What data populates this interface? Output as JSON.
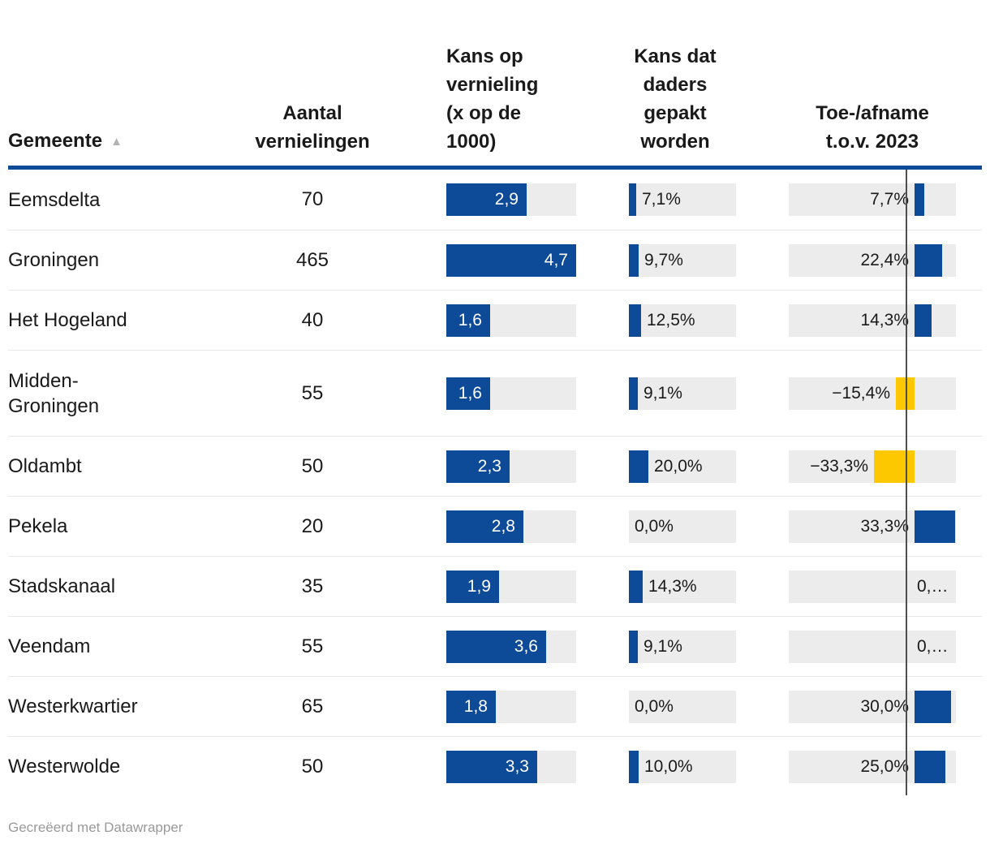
{
  "header": {
    "col_gemeente": "Gemeente",
    "sort_icon": "▲",
    "col_aantal": "Aantal\nvernielingen",
    "col_kans_vernieling": "Kans op\nvernieling\n(x op de\n1000)",
    "col_kans_gepakt": "Kans dat\ndaders\ngepakt\nworden",
    "col_toe_afname": "Toe-/afname\nt.o.v. 2023"
  },
  "colors": {
    "bar_positive": "#0d4a98",
    "bar_negative": "#fec800",
    "track": "#ececec",
    "header_rule": "#0d4a98",
    "zero_line": "#4e4e4e"
  },
  "footer": {
    "credit": "Gecreëerd met Datawrapper"
  },
  "chart_data": {
    "type": "table",
    "columns": [
      "Gemeente",
      "Aantal vernielingen",
      "Kans op vernieling (x op de 1000)",
      "Kans dat daders gepakt worden",
      "Toe-/afname t.o.v. 2023"
    ],
    "scales": {
      "kans_vernieling_max": 4.7,
      "kans_gepakt_max": 110,
      "toe_afname_max": 33.3
    },
    "rows": [
      {
        "gemeente": "Eemsdelta",
        "aantal": "70",
        "kans_vernieling": 2.9,
        "kans_vernieling_label": "2,9",
        "kans_gepakt": 7.1,
        "kans_gepakt_label": "7,1%",
        "toe_afname": 7.7,
        "toe_afname_label": "7,7%"
      },
      {
        "gemeente": "Groningen",
        "aantal": "465",
        "kans_vernieling": 4.7,
        "kans_vernieling_label": "4,7",
        "kans_gepakt": 9.7,
        "kans_gepakt_label": "9,7%",
        "toe_afname": 22.4,
        "toe_afname_label": "22,4%"
      },
      {
        "gemeente": "Het Hogeland",
        "aantal": "40",
        "kans_vernieling": 1.6,
        "kans_vernieling_label": "1,6",
        "kans_gepakt": 12.5,
        "kans_gepakt_label": "12,5%",
        "toe_afname": 14.3,
        "toe_afname_label": "14,3%"
      },
      {
        "gemeente": "Midden-\nGroningen",
        "aantal": "55",
        "kans_vernieling": 1.6,
        "kans_vernieling_label": "1,6",
        "kans_gepakt": 9.1,
        "kans_gepakt_label": "9,1%",
        "toe_afname": -15.4,
        "toe_afname_label": "−15,4%"
      },
      {
        "gemeente": "Oldambt",
        "aantal": "50",
        "kans_vernieling": 2.3,
        "kans_vernieling_label": "2,3",
        "kans_gepakt": 20.0,
        "kans_gepakt_label": "20,0%",
        "toe_afname": -33.3,
        "toe_afname_label": "−33,3%"
      },
      {
        "gemeente": "Pekela",
        "aantal": "20",
        "kans_vernieling": 2.8,
        "kans_vernieling_label": "2,8",
        "kans_gepakt": 0.0,
        "kans_gepakt_label": "0,0%",
        "toe_afname": 33.3,
        "toe_afname_label": "33,3%"
      },
      {
        "gemeente": "Stadskanaal",
        "aantal": "35",
        "kans_vernieling": 1.9,
        "kans_vernieling_label": "1,9",
        "kans_gepakt": 14.3,
        "kans_gepakt_label": "14,3%",
        "toe_afname": 0,
        "toe_afname_label": "0,…",
        "toe_label_truncated_right_of_line": true
      },
      {
        "gemeente": "Veendam",
        "aantal": "55",
        "kans_vernieling": 3.6,
        "kans_vernieling_label": "3,6",
        "kans_gepakt": 9.1,
        "kans_gepakt_label": "9,1%",
        "toe_afname": 0,
        "toe_afname_label": "0,…",
        "toe_label_truncated_right_of_line": true
      },
      {
        "gemeente": "Westerkwartier",
        "aantal": "65",
        "kans_vernieling": 1.8,
        "kans_vernieling_label": "1,8",
        "kans_gepakt": 0.0,
        "kans_gepakt_label": "0,0%",
        "toe_afname": 30.0,
        "toe_afname_label": "30,0%"
      },
      {
        "gemeente": "Westerwolde",
        "aantal": "50",
        "kans_vernieling": 3.3,
        "kans_vernieling_label": "3,3",
        "kans_gepakt": 10.0,
        "kans_gepakt_label": "10,0%",
        "toe_afname": 25.0,
        "toe_afname_label": "25,0%"
      }
    ]
  }
}
